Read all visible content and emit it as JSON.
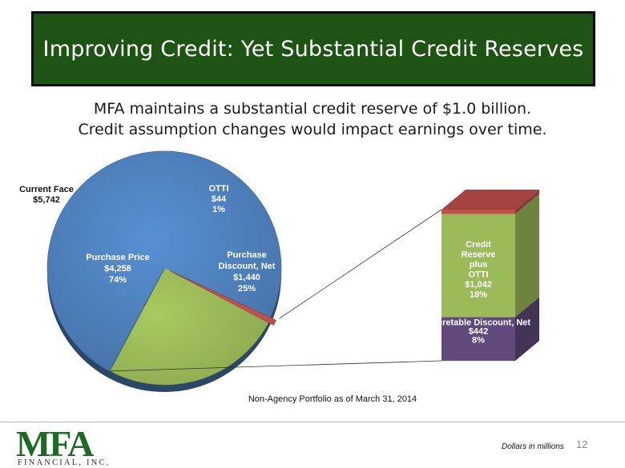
{
  "slide": {
    "title": "Improving Credit: Yet Substantial Credit Reserves",
    "subtitle_line1": "MFA maintains a substantial credit reserve of $1.0 billion.",
    "subtitle_line2": "Credit assumption changes would impact earnings over time.",
    "caption": "Non-Agency Portfolio as of March 31, 2014",
    "footnote": "Dollars in millions",
    "page_number": "12",
    "logo_text": "MFA",
    "logo_subtext": "FINANCIAL, INC."
  },
  "colors": {
    "banner": "#1d5413",
    "purchase_price": "#4f81bd",
    "purchase_discount": "#9bbb59",
    "otti": "#c0504d",
    "accretable": "#604a7b",
    "logo_green": "#1d6a25"
  },
  "chart_data": [
    {
      "type": "pie",
      "title": "Current Face",
      "total_label": "$5,742",
      "total": 5742,
      "slices": [
        {
          "name": "Purchase Price",
          "label_lines": [
            "Purchase Price",
            "$4,258",
            "74%"
          ],
          "value": 4258,
          "percent": 74,
          "color": "#4f81bd"
        },
        {
          "name": "Purchase Discount, Net",
          "label_lines": [
            "Purchase",
            "Discount, Net",
            "$1,440",
            "25%"
          ],
          "value": 1440,
          "percent": 25,
          "color": "#9bbb59"
        },
        {
          "name": "OTTI",
          "label_lines": [
            "OTTI",
            "$44",
            "1%"
          ],
          "value": 44,
          "percent": 1,
          "color": "#c0504d"
        }
      ]
    },
    {
      "type": "bar",
      "stacked": true,
      "segments": [
        {
          "name": "Accretable Discount, Net",
          "label_lines": [
            "Accretable Discount, Net",
            "$442",
            "8%"
          ],
          "value": 442,
          "percent": 8,
          "color": "#604a7b"
        },
        {
          "name": "Credit Reserve plus OTTI",
          "label_lines": [
            "Credit",
            "Reserve",
            "plus",
            "OTTI",
            "$1,042",
            "18%"
          ],
          "value": 1042,
          "percent": 18,
          "color": "#9bbb59"
        },
        {
          "name": "OTTI",
          "value": 44,
          "color": "#c0504d"
        }
      ]
    }
  ]
}
